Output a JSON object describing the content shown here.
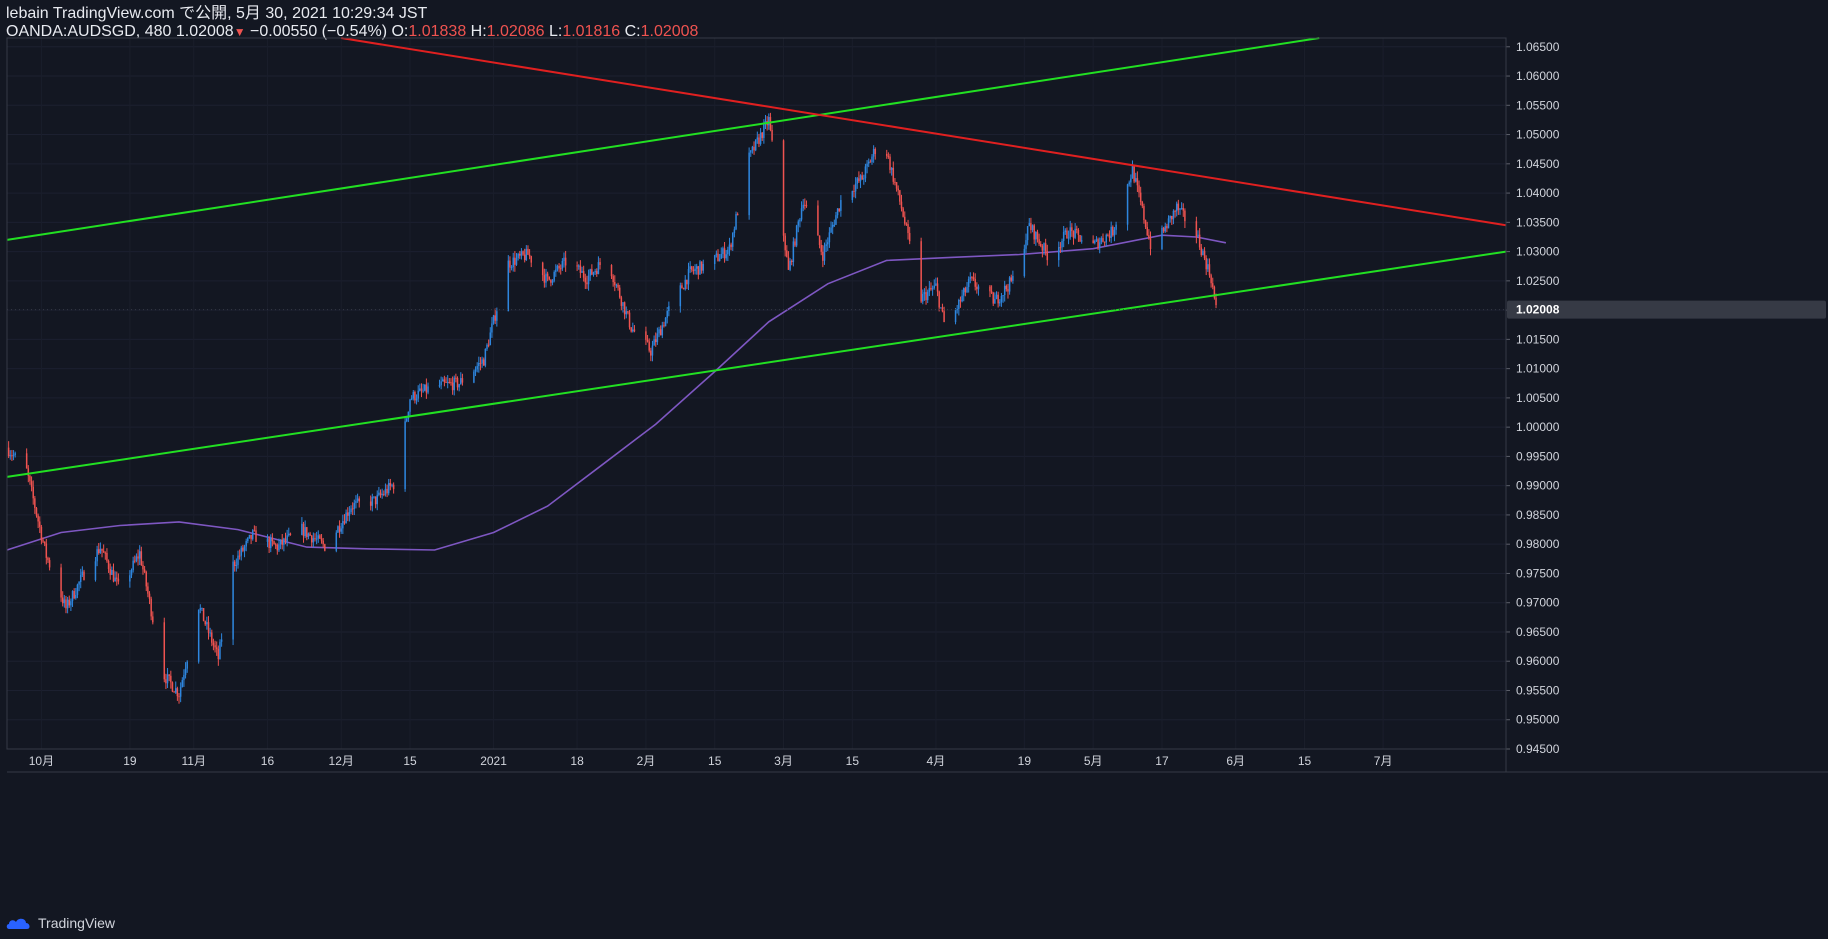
{
  "header": {
    "line1": "lebain TradingView.com で公開, 5月 30, 2021 10:29:34 JST",
    "symbol": "OANDA:AUDSGD, 480",
    "last": "1.02008",
    "change": "−0.00550 (−0.54%)",
    "o_label": "O:",
    "o_value": "1.01838",
    "h_label": "H:",
    "h_value": "1.02086",
    "l_label": "L:",
    "l_value": "1.01816",
    "c_label": "C:",
    "c_value": "1.02008"
  },
  "footer": {
    "logo_text": "TradingView"
  },
  "colors": {
    "background": "#131722",
    "up": "#2e86de",
    "down": "#ef5350",
    "ma": "#7e57c2",
    "support": "#22e022",
    "resistance": "#e02020",
    "axis_text": "#d1d4dc",
    "last_price_bg": "#363a45"
  },
  "chart_data": {
    "type": "candlestick",
    "symbol": "OANDA:AUDSGD",
    "interval": "480",
    "y_range": [
      0.945,
      1.0665
    ],
    "y_ticks": [
      1.065,
      1.06,
      1.055,
      1.05,
      1.045,
      1.04,
      1.035,
      1.03,
      1.025,
      1.02,
      1.015,
      1.01,
      1.005,
      1.0,
      0.995,
      0.99,
      0.985,
      0.98,
      0.975,
      0.97,
      0.965,
      0.96,
      0.955,
      0.95,
      0.945
    ],
    "y_tick_labels": [
      "1.06500",
      "1.06000",
      "1.05500",
      "1.05000",
      "1.04500",
      "1.04000",
      "1.03500",
      "1.03000",
      "1.02500",
      "1.02000",
      "1.01500",
      "1.01000",
      "1.00500",
      "1.00000",
      "0.99500",
      "0.99000",
      "0.98500",
      "0.98000",
      "0.97500",
      "0.97000",
      "0.96500",
      "0.96000",
      "0.95500",
      "0.95000",
      "0.94500"
    ],
    "last_price_label": "1.02008",
    "x_range": [
      "2020-09-24",
      "2021-07-26"
    ],
    "x_ticks": [
      {
        "date": "2020-10-01",
        "label": "10月"
      },
      {
        "date": "2020-10-19",
        "label": "19"
      },
      {
        "date": "2020-11-01",
        "label": "11月"
      },
      {
        "date": "2020-11-16",
        "label": "16"
      },
      {
        "date": "2020-12-01",
        "label": "12月"
      },
      {
        "date": "2020-12-15",
        "label": "15"
      },
      {
        "date": "2021-01-01",
        "label": "2021"
      },
      {
        "date": "2021-01-18",
        "label": "18"
      },
      {
        "date": "2021-02-01",
        "label": "2月"
      },
      {
        "date": "2021-02-15",
        "label": "15"
      },
      {
        "date": "2021-03-01",
        "label": "3月"
      },
      {
        "date": "2021-03-15",
        "label": "15"
      },
      {
        "date": "2021-04-01",
        "label": "4月"
      },
      {
        "date": "2021-04-19",
        "label": "19"
      },
      {
        "date": "2021-05-03",
        "label": "5月"
      },
      {
        "date": "2021-05-17",
        "label": "17"
      },
      {
        "date": "2021-06-01",
        "label": "6月"
      },
      {
        "date": "2021-06-15",
        "label": "15"
      },
      {
        "date": "2021-07-01",
        "label": "7月"
      }
    ],
    "price_path": [
      [
        "2020-09-24",
        0.9965
      ],
      [
        "2020-09-28",
        0.9925
      ],
      [
        "2020-10-02",
        0.978
      ],
      [
        "2020-10-06",
        0.969
      ],
      [
        "2020-10-10",
        0.9755
      ],
      [
        "2020-10-13",
        0.9795
      ],
      [
        "2020-10-17",
        0.972
      ],
      [
        "2020-10-21",
        0.9785
      ],
      [
        "2020-10-26",
        0.9575
      ],
      [
        "2020-10-29",
        0.9545
      ],
      [
        "2020-11-02",
        0.9695
      ],
      [
        "2020-11-06",
        0.9605
      ],
      [
        "2020-11-09",
        0.9765
      ],
      [
        "2020-11-13",
        0.9815
      ],
      [
        "2020-11-18",
        0.9795
      ],
      [
        "2020-11-23",
        0.9825
      ],
      [
        "2020-11-28",
        0.9795
      ],
      [
        "2020-12-03",
        0.9865
      ],
      [
        "2020-12-08",
        0.9875
      ],
      [
        "2020-12-12",
        0.9905
      ],
      [
        "2020-12-15",
        1.005
      ],
      [
        "2020-12-20",
        1.007
      ],
      [
        "2020-12-25",
        1.0075
      ],
      [
        "2020-12-30",
        1.0115
      ],
      [
        "2021-01-04",
        1.028
      ],
      [
        "2021-01-08",
        1.0295
      ],
      [
        "2021-01-12",
        1.025
      ],
      [
        "2021-01-16",
        1.0285
      ],
      [
        "2021-01-20",
        1.0255
      ],
      [
        "2021-01-24",
        1.029
      ],
      [
        "2021-01-29",
        1.017
      ],
      [
        "2021-02-02",
        1.013
      ],
      [
        "2021-02-06",
        1.0205
      ],
      [
        "2021-02-10",
        1.0265
      ],
      [
        "2021-02-14",
        1.028
      ],
      [
        "2021-02-18",
        1.0305
      ],
      [
        "2021-02-22",
        1.046
      ],
      [
        "2021-02-26",
        1.0525
      ],
      [
        "2021-03-02",
        1.0265
      ],
      [
        "2021-03-05",
        1.039
      ],
      [
        "2021-03-09",
        1.0295
      ],
      [
        "2021-03-13",
        1.0395
      ],
      [
        "2021-03-17",
        1.0425
      ],
      [
        "2021-03-21",
        1.05
      ],
      [
        "2021-03-25",
        1.0375
      ],
      [
        "2021-03-29",
        1.022
      ],
      [
        "2021-04-01",
        1.024
      ],
      [
        "2021-04-03",
        1.0165
      ],
      [
        "2021-04-08",
        1.025
      ],
      [
        "2021-04-13",
        1.0215
      ],
      [
        "2021-04-17",
        1.0255
      ],
      [
        "2021-04-20",
        1.0345
      ],
      [
        "2021-04-24",
        1.029
      ],
      [
        "2021-04-28",
        1.0335
      ],
      [
        "2021-05-03",
        1.031
      ],
      [
        "2021-05-07",
        1.0335
      ],
      [
        "2021-05-11",
        1.044
      ],
      [
        "2021-05-15",
        1.03
      ],
      [
        "2021-05-20",
        1.0375
      ],
      [
        "2021-05-24",
        1.033
      ],
      [
        "2021-05-27",
        1.0255
      ],
      [
        "2021-05-28",
        1.0201
      ]
    ],
    "moving_average": [
      [
        "2020-09-24",
        0.979
      ],
      [
        "2020-10-05",
        0.982
      ],
      [
        "2020-10-17",
        0.9832
      ],
      [
        "2020-10-29",
        0.9838
      ],
      [
        "2020-11-10",
        0.9825
      ],
      [
        "2020-11-24",
        0.9795
      ],
      [
        "2020-12-07",
        0.9792
      ],
      [
        "2020-12-20",
        0.979
      ],
      [
        "2021-01-01",
        0.982
      ],
      [
        "2021-01-12",
        0.9865
      ],
      [
        "2021-01-23",
        0.9935
      ],
      [
        "2021-02-03",
        1.0005
      ],
      [
        "2021-02-15",
        1.0095
      ],
      [
        "2021-02-26",
        1.018
      ],
      [
        "2021-03-10",
        1.0245
      ],
      [
        "2021-03-22",
        1.0285
      ],
      [
        "2021-04-04",
        1.029
      ],
      [
        "2021-04-18",
        1.0295
      ],
      [
        "2021-05-03",
        1.0305
      ],
      [
        "2021-05-17",
        1.0328
      ],
      [
        "2021-05-24",
        1.0325
      ],
      [
        "2021-05-30",
        1.0315
      ]
    ],
    "trendlines": [
      {
        "name": "upper-channel",
        "color": "#22e022",
        "points": [
          [
            "2020-09-24",
            1.032
          ],
          [
            "2021-06-18",
            1.0665
          ]
        ]
      },
      {
        "name": "lower-channel",
        "color": "#22e022",
        "points": [
          [
            "2020-09-24",
            0.9915
          ],
          [
            "2021-07-26",
            1.03
          ]
        ]
      },
      {
        "name": "resistance",
        "color": "#e02020",
        "points": [
          [
            "2020-12-01",
            1.0665
          ],
          [
            "2021-07-26",
            1.0345
          ]
        ]
      }
    ]
  }
}
